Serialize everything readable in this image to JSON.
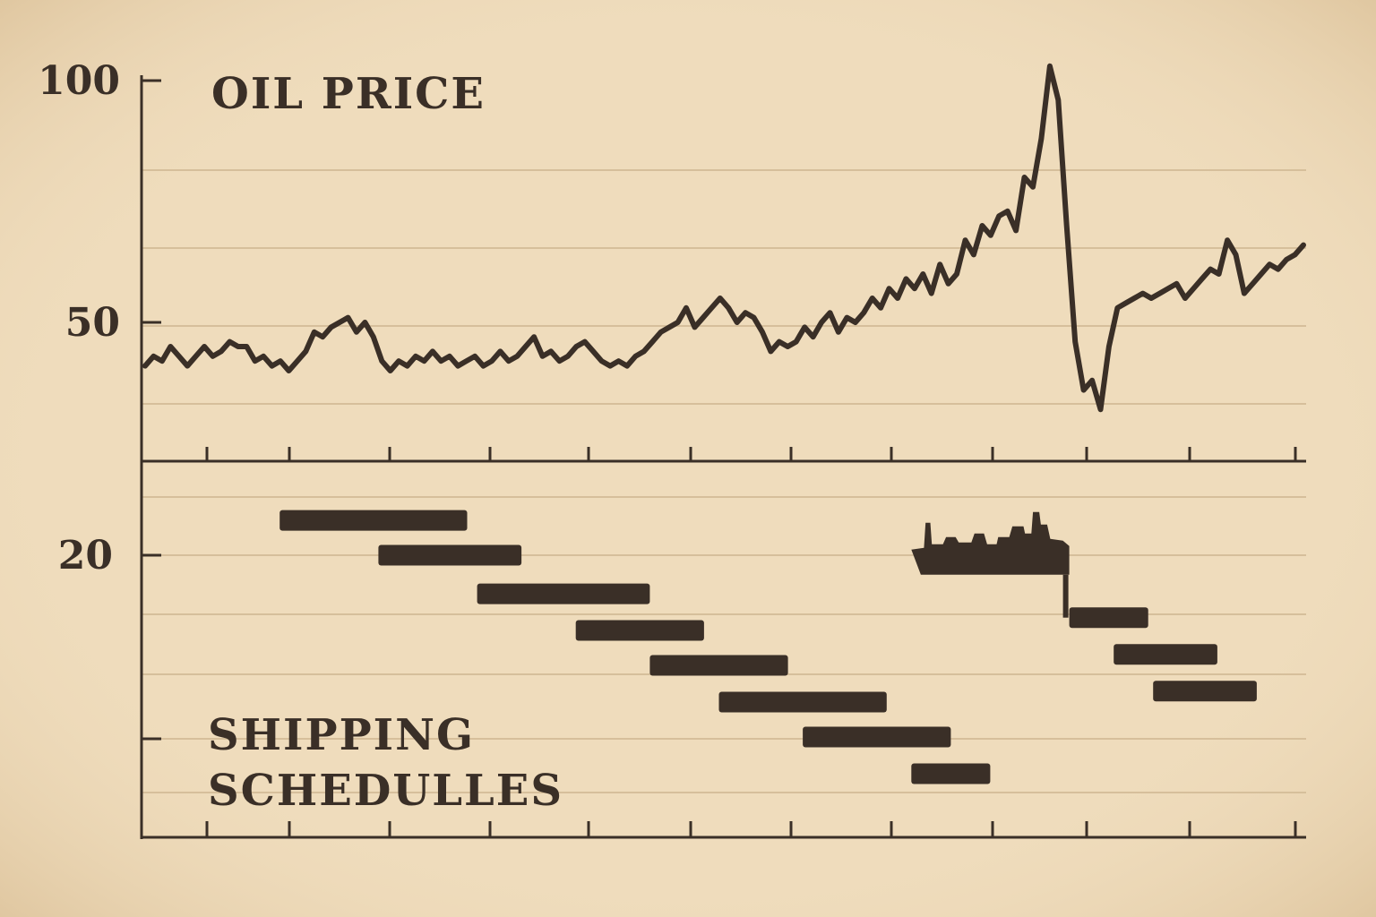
{
  "colors": {
    "paper": "#efdcbc",
    "ink": "#3a2f27",
    "grid": "#d6bf9b"
  },
  "chart_data": [
    {
      "type": "line",
      "title": "OIL PRICE",
      "xlabel": "",
      "ylabel": "",
      "yticks": [
        {
          "value": 100,
          "label": "100"
        },
        {
          "value": 50,
          "label": "50"
        }
      ],
      "ylim": [
        20,
        105
      ],
      "xlim": [
        0,
        118
      ],
      "x_tick_count": 12,
      "grid": true,
      "legend": "none",
      "series": [
        {
          "values": [
            41,
            43,
            42,
            45,
            43,
            41,
            43,
            45,
            43,
            44,
            46,
            45,
            45,
            42,
            43,
            41,
            42,
            40,
            42,
            44,
            48,
            47,
            49,
            50,
            51,
            48,
            50,
            47,
            42,
            40,
            42,
            41,
            43,
            42,
            44,
            42,
            43,
            41,
            42,
            43,
            41,
            42,
            44,
            42,
            43,
            45,
            47,
            43,
            44,
            42,
            43,
            45,
            46,
            44,
            42,
            41,
            42,
            41,
            43,
            44,
            46,
            48,
            49,
            50,
            53,
            49,
            51,
            53,
            55,
            53,
            50,
            52,
            51,
            48,
            44,
            46,
            45,
            46,
            49,
            47,
            50,
            52,
            48,
            51,
            50,
            52,
            55,
            53,
            57,
            55,
            59,
            57,
            60,
            56,
            62,
            58,
            60,
            67,
            64,
            70,
            68,
            72,
            73,
            69,
            80,
            78,
            88,
            103,
            96,
            70,
            46,
            36,
            38,
            32,
            45,
            53,
            54,
            55,
            56,
            55,
            56,
            57,
            58,
            55,
            57,
            59,
            61,
            60,
            67,
            64,
            56,
            58,
            60,
            62,
            61,
            63,
            64,
            66
          ]
        }
      ]
    },
    {
      "type": "bar",
      "title": "SHIPPING SCHEDULLES",
      "subtype": "gantt",
      "xlabel": "",
      "ylabel": "",
      "yticks": [
        {
          "value": 20,
          "label": "20"
        },
        {
          "value": 10,
          "label": ""
        }
      ],
      "ylim": [
        0,
        25.5
      ],
      "xlim": [
        0,
        118
      ],
      "x_tick_count": 12,
      "grid": true,
      "legend": "none",
      "bars": [
        {
          "start": 14,
          "end": 33,
          "y": 21.9
        },
        {
          "start": 24,
          "end": 38.5,
          "y": 20.0
        },
        {
          "start": 34,
          "end": 51.5,
          "y": 17.9
        },
        {
          "start": 44,
          "end": 57,
          "y": 15.9
        },
        {
          "start": 51.5,
          "end": 65.5,
          "y": 14.0
        },
        {
          "start": 58.5,
          "end": 75.5,
          "y": 12.0
        },
        {
          "start": 67,
          "end": 82,
          "y": 10.1
        },
        {
          "start": 78,
          "end": 86,
          "y": 8.1
        },
        {
          "start": 94,
          "end": 102,
          "y": 16.6
        },
        {
          "start": 98.5,
          "end": 109,
          "y": 14.6
        },
        {
          "start": 102.5,
          "end": 113,
          "y": 12.6
        }
      ],
      "ship": {
        "start": 78,
        "end": 94,
        "y": 20.5
      }
    }
  ]
}
